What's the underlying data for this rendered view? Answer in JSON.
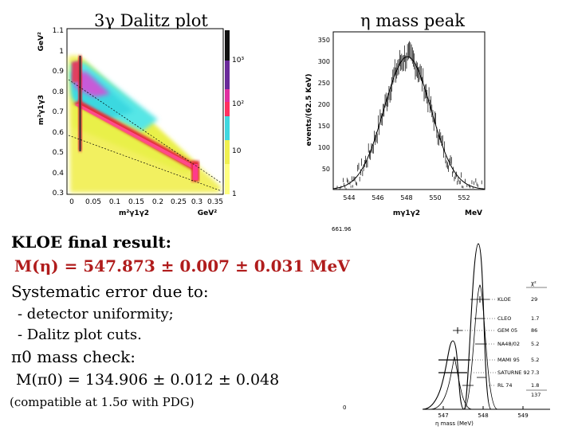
{
  "titles": {
    "dalitz": "3γ Dalitz plot",
    "eta_peak": "η mass peak"
  },
  "dalitz_plot": {
    "y_unit": "GeV²",
    "y_label": "m²γ1γ3",
    "x_label": "m²γ1γ2",
    "x_unit": "GeV²",
    "y_ticks": [
      "1.1",
      "1",
      "0.9",
      "0.8",
      "0.7",
      "0.6",
      "0.5",
      "0.4",
      "0.3"
    ],
    "x_ticks": [
      "0",
      "0.05",
      "0.1",
      "0.15",
      "0.2",
      "0.25",
      "0.3",
      "0.35"
    ],
    "colorbar_ticks": [
      "10³",
      "10²",
      "10",
      "1"
    ]
  },
  "mass_peak_plot": {
    "y_label": "events/(62.5 KeV)",
    "x_label": "mγ1γ2",
    "x_unit": "MeV",
    "y_ticks": [
      "350",
      "300",
      "250",
      "200",
      "150",
      "100",
      "50"
    ],
    "x_ticks": [
      "544",
      "546",
      "548",
      "550",
      "552"
    ]
  },
  "result": {
    "heading": "KLOE final result:",
    "mass_line": "M(η) = 547.873 ± 0.007 ± 0.031 MeV",
    "syst_heading": "Systematic error due to:",
    "syst_items": [
      "- detector uniformity;",
      "- Dalitz plot cuts."
    ],
    "pi0_heading": "π0 mass check:",
    "pi0_line": "M(π0) = 134.906 ± 0.012 ± 0.048",
    "pdg_note": "(compatible at 1.5σ with PDG)"
  },
  "comparison_plot": {
    "top_left_label": "661.96",
    "bottom_left_label": "0",
    "chi2_header": "χ²",
    "experiments": [
      {
        "name": "KLOE",
        "chi2": "29"
      },
      {
        "name": "CLEO",
        "chi2": "1.7"
      },
      {
        "name": "GEM 05",
        "chi2": "86"
      },
      {
        "name": "NA48/02",
        "chi2": "5.2"
      },
      {
        "name": "MAMI 95",
        "chi2": "5.2"
      },
      {
        "name": "SATURNE 92",
        "chi2": "7.3"
      },
      {
        "name": "RL 74",
        "chi2": "1.8"
      }
    ],
    "chi2_total": "137",
    "x_ticks": [
      "547",
      "548",
      "549"
    ],
    "x_label": "η mass (MeV)"
  }
}
